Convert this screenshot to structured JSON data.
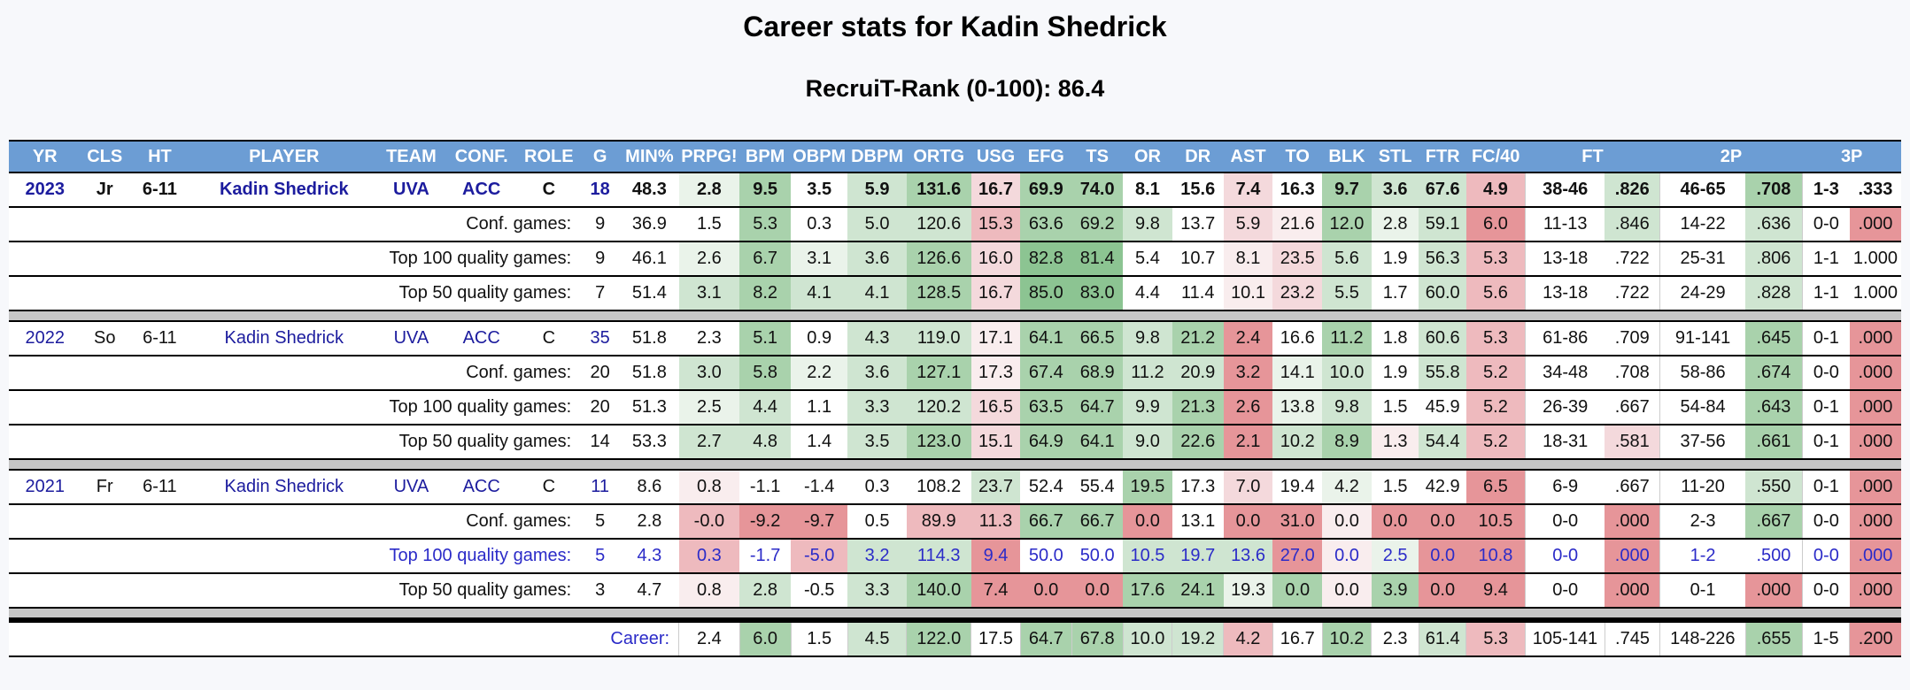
{
  "title": "Career stats for Kadin Shedrick",
  "subtitle": "RecruiT-Rank (0-100): 86.4",
  "colors": {
    "page_bg": "#f7f8fb",
    "header_bg": "#6c9dd4",
    "header_text": "#ffffff",
    "link_navy": "#1c1c9e",
    "link_blue": "#2b2bc8",
    "separator_gray": "#c6c6c6",
    "cells": {
      "w": "#ffffff",
      "g1": "#eaf3ea",
      "g2": "#cfe5d1",
      "g3": "#a9d2ac",
      "g4": "#8cc492",
      "r1": "#f9edee",
      "r2": "#f4d9dc",
      "r3": "#eebabe",
      "r4": "#e69599"
    }
  },
  "table": {
    "header": [
      {
        "label": "YR",
        "span": 1
      },
      {
        "label": "CLS",
        "span": 1
      },
      {
        "label": "HT",
        "span": 1
      },
      {
        "label": "PLAYER",
        "span": 1
      },
      {
        "label": "TEAM",
        "span": 1
      },
      {
        "label": "CONF.",
        "span": 1
      },
      {
        "label": "ROLE",
        "span": 1
      },
      {
        "label": "G",
        "span": 1
      },
      {
        "label": "MIN%",
        "span": 1
      },
      {
        "label": "PRPG!",
        "span": 1
      },
      {
        "label": "BPM",
        "span": 1
      },
      {
        "label": "OBPM",
        "span": 1
      },
      {
        "label": "DBPM",
        "span": 1
      },
      {
        "label": "ORTG",
        "span": 1
      },
      {
        "label": "USG",
        "span": 1
      },
      {
        "label": "EFG",
        "span": 1
      },
      {
        "label": "TS",
        "span": 1
      },
      {
        "label": "OR",
        "span": 1
      },
      {
        "label": "DR",
        "span": 1
      },
      {
        "label": "AST",
        "span": 1
      },
      {
        "label": "TO",
        "span": 1
      },
      {
        "label": "BLK",
        "span": 1
      },
      {
        "label": "STL",
        "span": 1
      },
      {
        "label": "FTR",
        "span": 1
      },
      {
        "label": "FC/40",
        "span": 1
      },
      {
        "label": "FT",
        "span": 2
      },
      {
        "label": "2P",
        "span": 2
      },
      {
        "label": "3P",
        "span": 2
      }
    ],
    "stat_columns": [
      "PRPG!",
      "BPM",
      "OBPM",
      "DBPM",
      "ORTG",
      "USG",
      "EFG",
      "TS",
      "OR",
      "DR",
      "AST",
      "TO",
      "BLK",
      "STL",
      "FTR",
      "FC/40",
      "FT",
      "FT%",
      "2P",
      "2P%",
      "3P",
      "3P%"
    ],
    "col_widths_pct": [
      3.8,
      2.5,
      3.3,
      9.8,
      3.6,
      3.8,
      3.3,
      2.1,
      3.1,
      3.2,
      2.7,
      3.0,
      3.1,
      3.4,
      2.6,
      2.7,
      2.7,
      2.6,
      2.7,
      2.6,
      2.6,
      2.6,
      2.5,
      2.5,
      3.1,
      4.2,
      2.9,
      4.5,
      3.0,
      2.5,
      2.7
    ],
    "rows": [
      {
        "type": "year",
        "bold": true,
        "yr": "2023",
        "cls": "Jr",
        "ht": "6-11",
        "player": "Kadin Shedrick",
        "team": "UVA",
        "conf": "ACC",
        "role": "C",
        "g": "18",
        "min": "48.3",
        "stats": [
          "2.8|g1",
          "9.5|g3",
          "3.5|w",
          "5.9|g2",
          "131.6|g3",
          "16.7|r2",
          "69.9|g3",
          "74.0|g3",
          "8.1|w",
          "15.6|w",
          "7.4|r2",
          "16.3|w",
          "9.7|g3",
          "3.6|g2",
          "67.6|g2",
          "4.9|r3",
          "38-46|w",
          ".826|g2",
          "46-65|w",
          ".708|g3",
          "1-3|w",
          ".333|w"
        ]
      },
      {
        "type": "sub",
        "label": "Conf. games:",
        "blue": false,
        "g": "9",
        "min": "36.9",
        "stats": [
          "1.5|w",
          "5.3|g3",
          "0.3|w",
          "5.0|g2",
          "120.6|g2",
          "15.3|r3",
          "63.6|g3",
          "69.2|g3",
          "9.8|g2",
          "13.7|w",
          "5.9|r2",
          "21.6|r1",
          "12.0|g3",
          "2.8|g1",
          "59.1|g2",
          "6.0|r4",
          "11-13|w",
          ".846|g2",
          "14-22|w",
          ".636|g2",
          "0-0|w",
          ".000|r4"
        ]
      },
      {
        "type": "sub",
        "label": "Top 100 quality games:",
        "blue": false,
        "g": "9",
        "min": "46.1",
        "stats": [
          "2.6|g1",
          "6.7|g3",
          "3.1|g1",
          "3.6|g2",
          "126.6|g3",
          "16.0|r2",
          "82.8|g4",
          "81.4|g4",
          "5.4|w",
          "10.7|w",
          "8.1|r1",
          "23.5|r2",
          "5.6|g2",
          "1.9|w",
          "56.3|g2",
          "5.3|r3",
          "13-18|w",
          ".722|w",
          "25-31|w",
          ".806|g2",
          "1-1|w",
          "1.000|w"
        ]
      },
      {
        "type": "sub",
        "label": "Top 50 quality games:",
        "blue": false,
        "g": "7",
        "min": "51.4",
        "stats": [
          "3.1|g2",
          "8.2|g3",
          "4.1|g2",
          "4.1|g2",
          "128.5|g3",
          "16.7|r2",
          "85.0|g4",
          "83.0|g4",
          "4.4|w",
          "11.4|w",
          "10.1|r1",
          "23.2|r2",
          "5.5|g2",
          "1.7|w",
          "60.0|g2",
          "5.6|r3",
          "13-18|w",
          ".722|w",
          "24-29|w",
          ".828|g2",
          "1-1|w",
          "1.000|w"
        ]
      },
      {
        "type": "sep"
      },
      {
        "type": "year",
        "bold": false,
        "yr": "2022",
        "cls": "So",
        "ht": "6-11",
        "player": "Kadin Shedrick",
        "team": "UVA",
        "conf": "ACC",
        "role": "C",
        "g": "35",
        "min": "51.8",
        "stats": [
          "2.3|w",
          "5.1|g3",
          "0.9|w",
          "4.3|g2",
          "119.0|g2",
          "17.1|r1",
          "64.1|g3",
          "66.5|g3",
          "9.8|g2",
          "21.2|g3",
          "2.4|r4",
          "16.6|w",
          "11.2|g3",
          "1.8|w",
          "60.6|g2",
          "5.3|r3",
          "61-86|w",
          ".709|w",
          "91-141|w",
          ".645|g3",
          "0-1|w",
          ".000|r4"
        ]
      },
      {
        "type": "sub",
        "label": "Conf. games:",
        "blue": false,
        "g": "20",
        "min": "51.8",
        "stats": [
          "3.0|g2",
          "5.8|g3",
          "2.2|g1",
          "3.6|g2",
          "127.1|g3",
          "17.3|r1",
          "67.4|g3",
          "68.9|g3",
          "11.2|g2",
          "20.9|g2",
          "3.2|r4",
          "14.1|g1",
          "10.0|g2",
          "1.9|w",
          "55.8|g2",
          "5.2|r3",
          "34-48|w",
          ".708|w",
          "58-86|w",
          ".674|g3",
          "0-0|w",
          ".000|r4"
        ]
      },
      {
        "type": "sub",
        "label": "Top 100 quality games:",
        "blue": false,
        "g": "20",
        "min": "51.3",
        "stats": [
          "2.5|g1",
          "4.4|g2",
          "1.1|w",
          "3.3|g2",
          "120.2|g2",
          "16.5|r2",
          "63.5|g3",
          "64.7|g3",
          "9.9|g2",
          "21.3|g3",
          "2.6|r4",
          "13.8|g1",
          "9.8|g2",
          "1.5|w",
          "45.9|w",
          "5.2|r3",
          "26-39|w",
          ".667|w",
          "54-84|w",
          ".643|g3",
          "0-1|w",
          ".000|r4"
        ]
      },
      {
        "type": "sub",
        "label": "Top 50 quality games:",
        "blue": false,
        "g": "14",
        "min": "53.3",
        "stats": [
          "2.7|g2",
          "4.8|g2",
          "1.4|w",
          "3.5|g2",
          "123.0|g3",
          "15.1|r2",
          "64.9|g3",
          "64.1|g3",
          "9.0|g2",
          "22.6|g3",
          "2.1|r4",
          "10.2|g2",
          "8.9|g3",
          "1.3|r1",
          "54.4|g2",
          "5.2|r3",
          "18-31|w",
          ".581|r2",
          "37-56|w",
          ".661|g3",
          "0-1|w",
          ".000|r4"
        ]
      },
      {
        "type": "sep"
      },
      {
        "type": "year",
        "bold": false,
        "yr": "2021",
        "cls": "Fr",
        "ht": "6-11",
        "player": "Kadin Shedrick",
        "team": "UVA",
        "conf": "ACC",
        "role": "C",
        "g": "11",
        "min": "8.6",
        "stats": [
          "0.8|r1",
          "-1.1|w",
          "-1.4|w",
          "0.3|w",
          "108.2|w",
          "23.7|g2",
          "52.4|w",
          "55.4|w",
          "19.5|g3",
          "17.3|w",
          "7.0|r2",
          "19.4|w",
          "4.2|g1",
          "1.5|w",
          "42.9|w",
          "6.5|r4",
          "6-9|w",
          ".667|w",
          "11-20|w",
          ".550|g2",
          "0-1|w",
          ".000|r4"
        ]
      },
      {
        "type": "sub",
        "label": "Conf. games:",
        "blue": false,
        "g": "5",
        "min": "2.8",
        "stats": [
          "-0.0|r3",
          "-9.2|r4",
          "-9.7|r4",
          "0.5|w",
          "89.9|r3",
          "11.3|r3",
          "66.7|g3",
          "66.7|g3",
          "0.0|r4",
          "13.1|w",
          "0.0|r4",
          "31.0|r4",
          "0.0|r1",
          "0.0|r4",
          "0.0|r4",
          "10.5|r4",
          "0-0|w",
          ".000|r4",
          "2-3|w",
          ".667|g3",
          "0-0|w",
          ".000|r4"
        ]
      },
      {
        "type": "sub",
        "label": "Top 100 quality games:",
        "blue": true,
        "g": "5",
        "min": "4.3",
        "stats": [
          "0.3|r3",
          "-1.7|w",
          "-5.0|r3",
          "3.2|g2",
          "114.3|g2",
          "9.4|r4",
          "50.0|w",
          "50.0|w",
          "10.5|g2",
          "19.7|g2",
          "13.6|g2",
          "27.0|r4",
          "0.0|r1",
          "2.5|g1",
          "0.0|r4",
          "10.8|r4",
          "0-0|w",
          ".000|r4",
          "1-2|w",
          ".500|w",
          "0-0|w",
          ".000|r4"
        ]
      },
      {
        "type": "sub",
        "label": "Top 50 quality games:",
        "blue": false,
        "g": "3",
        "min": "4.7",
        "stats": [
          "0.8|r1",
          "2.8|g2",
          "-0.5|w",
          "3.3|g2",
          "140.0|g3",
          "7.4|r4",
          "0.0|r4",
          "0.0|r4",
          "17.6|g3",
          "24.1|g3",
          "19.3|g1",
          "0.0|g3",
          "0.0|r1",
          "3.9|g3",
          "0.0|r4",
          "9.4|r4",
          "0-0|w",
          ".000|r4",
          "0-1|w",
          ".000|r4",
          "0-0|w",
          ".000|r4"
        ]
      },
      {
        "type": "career-sep"
      },
      {
        "type": "career",
        "label": "Career:",
        "stats": [
          "2.4|w",
          "6.0|g3",
          "1.5|w",
          "4.5|g2",
          "122.0|g3",
          "17.5|w",
          "64.7|g3",
          "67.8|g3",
          "10.0|g2",
          "19.2|g2",
          "4.2|r3",
          "16.7|w",
          "10.2|g3",
          "2.3|w",
          "61.4|g2",
          "5.3|r3",
          "105-141|w",
          ".745|w",
          "148-226|w",
          ".655|g3",
          "1-5|w",
          ".200|r4"
        ]
      }
    ]
  }
}
